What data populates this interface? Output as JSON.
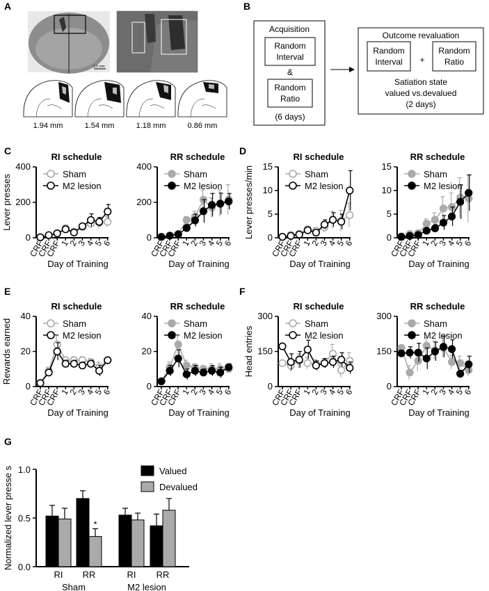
{
  "panel_letters": {
    "a": "A",
    "b": "B",
    "c": "C",
    "d": "D",
    "e": "E",
    "f": "F",
    "g": "G"
  },
  "panel_a": {
    "scale_text": "1.0 mm",
    "coronal_levels": [
      "1.94 mm",
      "1.54 mm",
      "1.18 mm",
      "0.86 mm"
    ],
    "colors": {
      "tissue": "#8a8a8a",
      "lesion_dark": "#111111",
      "lesion_light": "#bdbdbd"
    }
  },
  "panel_b": {
    "acq_title": "Acquisition",
    "ri_line1": "Random",
    "ri_line2": "Interval",
    "amp": "&",
    "rr_line1": "Random",
    "rr_line2": "Ratio",
    "days": "(6 days)",
    "reval_title": "Outcome revaluation",
    "plus": "+",
    "state_line": "Satiation state",
    "valued_line": "valued vs.devalued",
    "days2": "(2 days)"
  },
  "colors": {
    "sham": "#aaaaaa",
    "lesion": "#000000",
    "valued": "#000000",
    "devalued": "#aaaaaa"
  },
  "chart_data": [
    {
      "id": "C_RI",
      "panel": "C",
      "type": "line",
      "title": "RI schedule",
      "xlabel": "Day of Training",
      "ylabel": "Lever presses",
      "categories": [
        "CRF",
        "CRF",
        "CRF",
        "1",
        "2",
        "3",
        "4",
        "5",
        "6"
      ],
      "ylim": [
        0,
        400
      ],
      "yticks": [
        0,
        200,
        400
      ],
      "marker": "open",
      "legend": [
        "Sham",
        "M2 lesion"
      ],
      "legend_position": "top-left",
      "series": [
        {
          "name": "Sham",
          "values": [
            3,
            12,
            25,
            55,
            35,
            60,
            80,
            85,
            90
          ],
          "err": [
            0,
            3,
            8,
            12,
            10,
            15,
            25,
            30,
            30
          ]
        },
        {
          "name": "M2 lesion",
          "values": [
            3,
            15,
            25,
            48,
            30,
            65,
            100,
            90,
            148
          ],
          "err": [
            0,
            3,
            8,
            15,
            8,
            12,
            35,
            25,
            40
          ]
        }
      ]
    },
    {
      "id": "C_RR",
      "panel": "C",
      "type": "line",
      "title": "RR schedule",
      "xlabel": "Day of Training",
      "ylabel": "",
      "categories": [
        "CRF",
        "CRF",
        "CRF",
        "1",
        "2",
        "3",
        "4",
        "5",
        "6"
      ],
      "ylim": [
        0,
        400
      ],
      "yticks": [
        0,
        200,
        400
      ],
      "marker": "filled",
      "legend": [
        "Sham",
        "M2 lesion"
      ],
      "legend_position": "top-left",
      "series": [
        {
          "name": "Sham",
          "values": [
            5,
            12,
            20,
            100,
            120,
            215,
            170,
            195,
            215
          ],
          "err": [
            0,
            3,
            8,
            20,
            30,
            55,
            55,
            75,
            85
          ]
        },
        {
          "name": "M2 lesion",
          "values": [
            5,
            12,
            20,
            55,
            98,
            150,
            185,
            192,
            205
          ],
          "err": [
            0,
            3,
            6,
            20,
            35,
            65,
            65,
            60,
            45
          ]
        }
      ]
    },
    {
      "id": "D_RI",
      "panel": "D",
      "type": "line",
      "title": "RI schedule",
      "xlabel": "Day of Training",
      "ylabel": "Lever presses/min",
      "categories": [
        "CRF",
        "CRF",
        "CRF",
        "1",
        "2",
        "3",
        "4",
        "5",
        "6"
      ],
      "ylim": [
        0,
        15
      ],
      "yticks": [
        0,
        5,
        10,
        15
      ],
      "marker": "open",
      "legend": [
        "Sham",
        "M2 lesion"
      ],
      "legend_position": "top-left",
      "series": [
        {
          "name": "Sham",
          "values": [
            0.2,
            0.6,
            0.8,
            1.8,
            1.5,
            2.2,
            3.8,
            3.6,
            4.8
          ],
          "err": [
            0,
            0.3,
            0.4,
            0.6,
            0.6,
            1.0,
            1.8,
            2.2,
            2.5
          ]
        },
        {
          "name": "M2 lesion",
          "values": [
            0.2,
            0.4,
            0.7,
            1.6,
            1.1,
            2.8,
            3.8,
            3.4,
            10
          ],
          "err": [
            0,
            0.3,
            0.4,
            0.6,
            0.5,
            1.0,
            1.5,
            1.6,
            4.2
          ]
        }
      ]
    },
    {
      "id": "D_RR",
      "panel": "D",
      "type": "line",
      "title": "RR schedule",
      "xlabel": "Day of Training",
      "ylabel": "",
      "categories": [
        "CRF",
        "CRF",
        "CRF",
        "1",
        "2",
        "3",
        "4",
        "5",
        "6"
      ],
      "ylim": [
        0,
        15
      ],
      "yticks": [
        0,
        5,
        10,
        15
      ],
      "marker": "filled",
      "legend": [
        "Sham",
        "M2 lesion"
      ],
      "legend_position": "top-left",
      "series": [
        {
          "name": "Sham",
          "values": [
            0.3,
            0.8,
            1.0,
            3.0,
            3.8,
            6.2,
            6.5,
            8.5,
            8.3
          ],
          "err": [
            0,
            0.3,
            0.4,
            1.0,
            1.5,
            2.5,
            3.0,
            4.2,
            5.0
          ]
        },
        {
          "name": "M2 lesion",
          "values": [
            0.2,
            0.4,
            0.6,
            1.5,
            2.0,
            3.2,
            4.5,
            7.6,
            9.5
          ],
          "err": [
            0,
            0.2,
            0.3,
            0.6,
            0.8,
            1.5,
            2.0,
            3.6,
            3.8
          ]
        }
      ]
    },
    {
      "id": "E_RI",
      "panel": "E",
      "type": "line",
      "title": "RI schedule",
      "xlabel": "Day of Training",
      "ylabel": "Rewards earned",
      "categories": [
        "CRF",
        "CRF",
        "CRF",
        "1",
        "2",
        "3",
        "4",
        "5",
        "6"
      ],
      "ylim": [
        0,
        40
      ],
      "yticks": [
        0,
        20,
        40
      ],
      "marker": "open",
      "legend": [
        "Sham",
        "M2 lesion"
      ],
      "legend_position": "top-left",
      "series": [
        {
          "name": "Sham",
          "values": [
            2,
            9,
            24,
            15,
            15,
            15,
            14,
            11,
            15
          ],
          "err": [
            0,
            2,
            5,
            2,
            2,
            2,
            2,
            3,
            0
          ]
        },
        {
          "name": "M2 lesion",
          "values": [
            2,
            8,
            20,
            13,
            13,
            12,
            13,
            9,
            15
          ],
          "err": [
            0,
            2,
            5,
            2,
            2,
            2,
            2,
            3,
            0
          ]
        }
      ]
    },
    {
      "id": "E_RR",
      "panel": "E",
      "type": "line",
      "title": "RR schedule",
      "xlabel": "Day of Training",
      "ylabel": "",
      "categories": [
        "CRF",
        "CRF",
        "CRF",
        "1",
        "2",
        "3",
        "4",
        "5",
        "6"
      ],
      "ylim": [
        0,
        40
      ],
      "yticks": [
        0,
        20,
        40
      ],
      "marker": "filled",
      "legend": [
        "Sham",
        "M2 lesion"
      ],
      "legend_position": "top-left",
      "series": [
        {
          "name": "Sham",
          "values": [
            3,
            11,
            24,
            12,
            11,
            10,
            10,
            10,
            10
          ],
          "err": [
            0,
            3,
            5,
            3,
            2,
            2,
            3,
            3,
            2
          ]
        },
        {
          "name": "M2 lesion",
          "values": [
            3,
            9,
            16,
            7,
            9,
            8,
            9,
            8,
            11
          ],
          "err": [
            0,
            3,
            5,
            3,
            3,
            2,
            3,
            3,
            2
          ]
        }
      ]
    },
    {
      "id": "F_RI",
      "panel": "F",
      "type": "line",
      "title": "RI schedule",
      "xlabel": "Day of Training",
      "ylabel": "Head entries",
      "categories": [
        "CRF",
        "CRF",
        "CRF",
        "1",
        "2",
        "3",
        "4",
        "5",
        "6"
      ],
      "ylim": [
        0,
        300
      ],
      "yticks": [
        0,
        150,
        300
      ],
      "marker": "open",
      "legend": [
        "Sham",
        "M2 lesion"
      ],
      "legend_position": "top-left",
      "series": [
        {
          "name": "Sham",
          "values": [
            100,
            90,
            110,
            100,
            95,
            100,
            140,
            70,
            110
          ],
          "err": [
            0,
            25,
            30,
            25,
            20,
            20,
            40,
            30,
            35
          ]
        },
        {
          "name": "M2 lesion",
          "values": [
            172,
            105,
            115,
            158,
            90,
            100,
            105,
            115,
            80
          ],
          "err": [
            0,
            35,
            35,
            40,
            20,
            20,
            25,
            30,
            25
          ]
        }
      ]
    },
    {
      "id": "F_RR",
      "panel": "F",
      "type": "line",
      "title": "RR schedule",
      "xlabel": "Day of Training",
      "ylabel": "",
      "categories": [
        "CRF",
        "CRF",
        "CRF",
        "1",
        "2",
        "3",
        "4",
        "5",
        "6"
      ],
      "ylim": [
        0,
        300
      ],
      "yticks": [
        0,
        150,
        300
      ],
      "marker": "filled",
      "legend": [
        "Sham",
        "M2 lesion"
      ],
      "legend_position": "top-left",
      "series": [
        {
          "name": "Sham",
          "values": [
            165,
            60,
            110,
            175,
            155,
            165,
            105,
            100,
            70
          ],
          "err": [
            0,
            30,
            45,
            40,
            40,
            40,
            30,
            30,
            25
          ]
        },
        {
          "name": "M2 lesion",
          "values": [
            142,
            145,
            145,
            120,
            150,
            170,
            160,
            55,
            95
          ],
          "err": [
            0,
            25,
            40,
            45,
            40,
            45,
            40,
            15,
            35
          ]
        }
      ]
    },
    {
      "id": "G",
      "panel": "G",
      "type": "bar",
      "title": "",
      "xlabel": "",
      "ylabel": "Normalized lever presse s",
      "group_labels": [
        "Sham",
        "M2 lesion"
      ],
      "categories": [
        "RI",
        "RR",
        "RI",
        "RR"
      ],
      "ylim": [
        0,
        1.0
      ],
      "yticks": [
        "0.0",
        "0.5",
        "1.0"
      ],
      "legend": [
        "Valued",
        "Devalued"
      ],
      "legend_position": "top-right",
      "series": [
        {
          "name": "Valued",
          "values": [
            0.52,
            0.7,
            0.53,
            0.42
          ],
          "err": [
            0.11,
            0.08,
            0.07,
            0.12
          ]
        },
        {
          "name": "Devalued",
          "values": [
            0.49,
            0.31,
            0.48,
            0.58
          ],
          "err": [
            0.11,
            0.08,
            0.07,
            0.12
          ]
        }
      ],
      "significance": {
        "category_index": 1,
        "series": "Devalued",
        "mark": "*"
      }
    }
  ]
}
